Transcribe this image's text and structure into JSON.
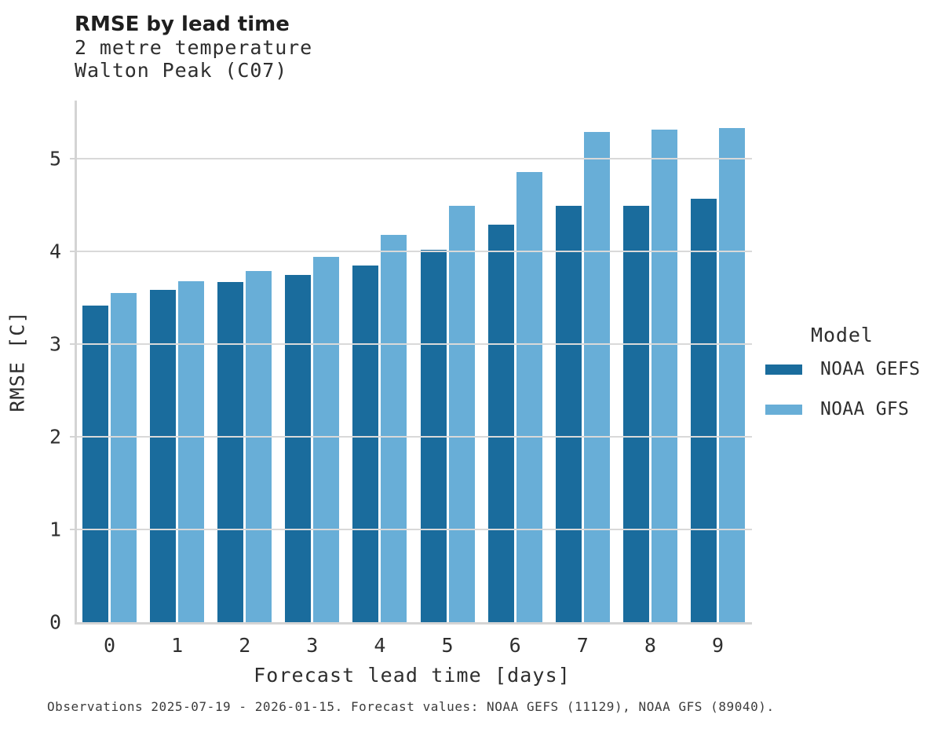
{
  "header": {
    "title": "RMSE by lead time",
    "subtitle_line1": "2 metre temperature",
    "subtitle_line2": "Walton Peak (C07)"
  },
  "chart_data": {
    "type": "bar",
    "title": "RMSE by lead time",
    "subtitle": [
      "2 metre temperature",
      "Walton Peak (C07)"
    ],
    "categories": [
      "0",
      "1",
      "2",
      "3",
      "4",
      "5",
      "6",
      "7",
      "8",
      "9"
    ],
    "series": [
      {
        "name": "NOAA GEFS",
        "color": "#1a6c9d",
        "values": [
          3.42,
          3.59,
          3.67,
          3.75,
          3.85,
          4.02,
          4.29,
          4.49,
          4.49,
          4.57
        ]
      },
      {
        "name": "NOAA GFS",
        "color": "#68aed7",
        "values": [
          3.55,
          3.68,
          3.79,
          3.94,
          4.18,
          4.49,
          4.86,
          5.29,
          5.32,
          5.33
        ]
      }
    ],
    "xlabel": "Forecast lead time [days]",
    "ylabel": "RMSE [C]",
    "ylim": [
      0,
      5.63
    ],
    "yticks": [
      0,
      1,
      2,
      3,
      4,
      5
    ],
    "grid": "horizontal",
    "legend_title": "Model",
    "legend_position": "right"
  },
  "legend": {
    "title": "Model",
    "items": [
      {
        "label": "NOAA GEFS",
        "color": "#1a6c9d"
      },
      {
        "label": "NOAA GFS",
        "color": "#68aed7"
      }
    ]
  },
  "footer": {
    "caption": "Observations 2025-07-19 - 2026-01-15. Forecast values: NOAA GEFS (11129), NOAA GFS (89040)."
  },
  "colors": {
    "background": "#ffffff",
    "gridline": "#d9d9d9",
    "axis_line": "#d4d4d4",
    "title_text": "#1f1f1f",
    "body_text": "#2e2e2e",
    "tick_text": "#2f2f2f",
    "caption_text": "#3c3c3c"
  }
}
